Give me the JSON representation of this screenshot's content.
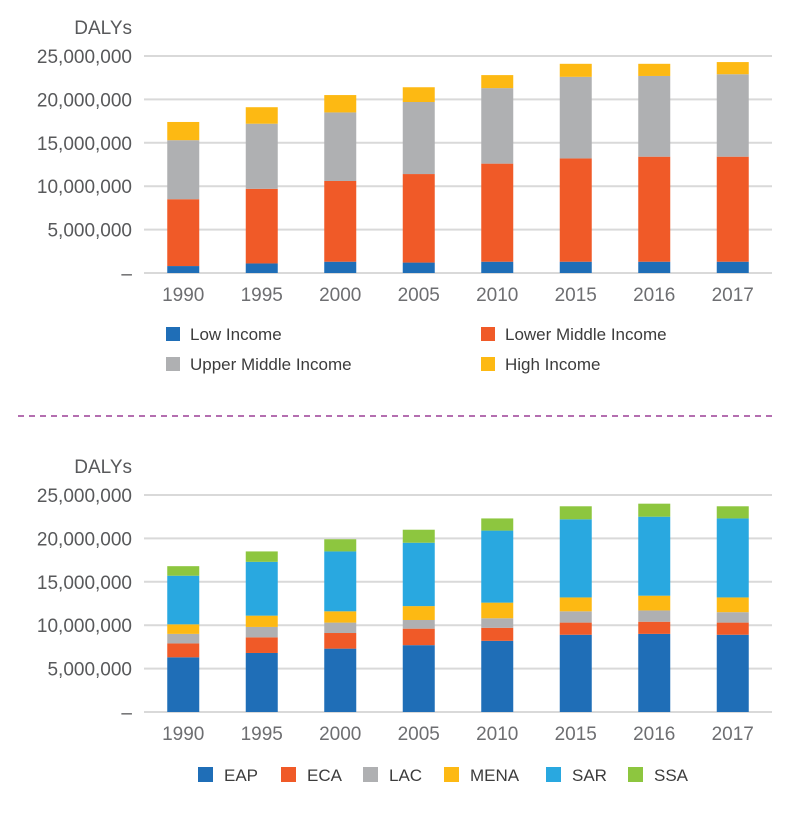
{
  "chart_data": [
    {
      "type": "bar",
      "stacked": true,
      "title": "",
      "ylabel": "DALYs",
      "xlabel": "",
      "ylim": [
        0,
        25000000
      ],
      "yticks": [
        0,
        5000000,
        10000000,
        15000000,
        20000000,
        25000000
      ],
      "ytick_labels": [
        "–",
        "5,000,000",
        "10,000,000",
        "15,000,000",
        "20,000,000",
        "25,000,000"
      ],
      "grid": true,
      "legend_position": "bottom",
      "categories": [
        "1990",
        "1995",
        "2000",
        "2005",
        "2010",
        "2015",
        "2016",
        "2017"
      ],
      "series": [
        {
          "name": "Low Income",
          "color": "#1f6eb7",
          "values": [
            800000,
            1100000,
            1300000,
            1200000,
            1300000,
            1300000,
            1300000,
            1300000
          ]
        },
        {
          "name": "Lower Middle Income",
          "color": "#f05a28",
          "values": [
            7700000,
            8600000,
            9300000,
            10200000,
            11300000,
            11900000,
            12100000,
            12100000
          ]
        },
        {
          "name": "Upper Middle Income",
          "color": "#afb0b2",
          "values": [
            6800000,
            7500000,
            7900000,
            8300000,
            8700000,
            9400000,
            9300000,
            9500000
          ]
        },
        {
          "name": "High Income",
          "color": "#fdb913",
          "values": [
            2100000,
            1900000,
            2000000,
            1700000,
            1500000,
            1500000,
            1400000,
            1400000
          ]
        }
      ],
      "legend_layout": [
        [
          "Low Income",
          "Lower Middle Income"
        ],
        [
          "Upper Middle Income",
          "High Income"
        ]
      ]
    },
    {
      "type": "bar",
      "stacked": true,
      "title": "",
      "ylabel": "DALYs",
      "xlabel": "",
      "ylim": [
        0,
        25000000
      ],
      "yticks": [
        0,
        5000000,
        10000000,
        15000000,
        20000000,
        25000000
      ],
      "ytick_labels": [
        "–",
        "5,000,000",
        "10,000,000",
        "15,000,000",
        "20,000,000",
        "25,000,000"
      ],
      "grid": true,
      "legend_position": "bottom",
      "categories": [
        "1990",
        "1995",
        "2000",
        "2005",
        "2010",
        "2015",
        "2016",
        "2017"
      ],
      "series": [
        {
          "name": "EAP",
          "color": "#1f6eb7",
          "values": [
            6300000,
            6800000,
            7300000,
            7700000,
            8200000,
            8900000,
            9000000,
            8900000
          ]
        },
        {
          "name": "ECA",
          "color": "#f05a28",
          "values": [
            1600000,
            1800000,
            1800000,
            1900000,
            1500000,
            1400000,
            1400000,
            1400000
          ]
        },
        {
          "name": "LAC",
          "color": "#afb0b2",
          "values": [
            1100000,
            1200000,
            1200000,
            1000000,
            1100000,
            1300000,
            1300000,
            1200000
          ]
        },
        {
          "name": "MENA",
          "color": "#fdb913",
          "values": [
            1100000,
            1300000,
            1300000,
            1600000,
            1800000,
            1600000,
            1700000,
            1700000
          ]
        },
        {
          "name": "SAR",
          "color": "#29a8e0",
          "values": [
            5600000,
            6200000,
            6900000,
            7300000,
            8300000,
            9000000,
            9100000,
            9100000
          ]
        },
        {
          "name": "SSA",
          "color": "#8dc63f",
          "values": [
            1100000,
            1200000,
            1400000,
            1500000,
            1400000,
            1500000,
            1500000,
            1400000
          ]
        }
      ]
    }
  ],
  "divider": {
    "color": "#9b3f96"
  }
}
